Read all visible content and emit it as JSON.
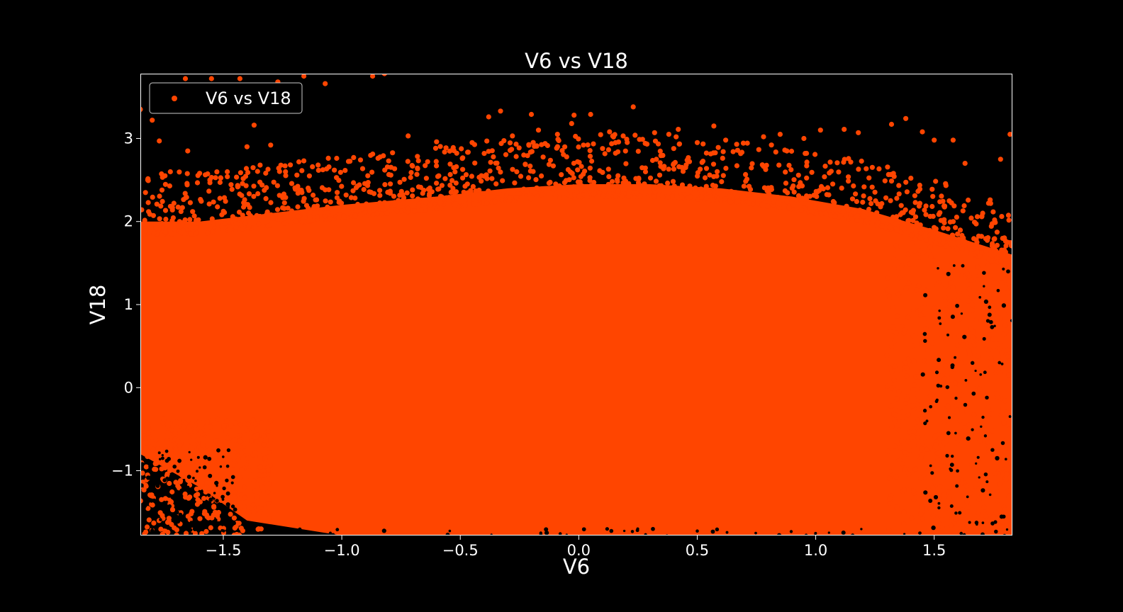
{
  "colors": {
    "background": "#000000",
    "points": "#ff4500",
    "axes": "#ffffff",
    "text": "#ffffff"
  },
  "chart_data": {
    "type": "scatter",
    "title": "V6 vs V18",
    "xlabel": "V6",
    "ylabel": "V18",
    "xlim": [
      -1.85,
      1.83
    ],
    "ylim": [
      -1.78,
      3.78
    ],
    "xticks": [
      {
        "value": -1.5,
        "label": "−1.5"
      },
      {
        "value": -1.0,
        "label": "−1.0"
      },
      {
        "value": -0.5,
        "label": "−0.5"
      },
      {
        "value": 0.0,
        "label": "0.0"
      },
      {
        "value": 0.5,
        "label": "0.5"
      },
      {
        "value": 1.0,
        "label": "1.0"
      },
      {
        "value": 1.5,
        "label": "1.5"
      }
    ],
    "yticks": [
      {
        "value": -1,
        "label": "−1"
      },
      {
        "value": 0,
        "label": "0"
      },
      {
        "value": 1,
        "label": "1"
      },
      {
        "value": 2,
        "label": "2"
      },
      {
        "value": 3,
        "label": "3"
      }
    ],
    "grid": false,
    "legend": {
      "position": "top-left"
    },
    "series": [
      {
        "name": "V6 vs V18",
        "color": "#ff4500",
        "density_body": [
          [
            -1.85,
            -1.7
          ],
          [
            -1.85,
            2.0
          ],
          [
            -1.6,
            2.0
          ],
          [
            -1.3,
            2.1
          ],
          [
            -1.0,
            2.2
          ],
          [
            -0.6,
            2.3
          ],
          [
            -0.3,
            2.4
          ],
          [
            0.0,
            2.45
          ],
          [
            0.3,
            2.45
          ],
          [
            0.6,
            2.4
          ],
          [
            0.9,
            2.3
          ],
          [
            1.2,
            2.15
          ],
          [
            1.5,
            1.9
          ],
          [
            1.83,
            1.6
          ],
          [
            1.83,
            -1.78
          ],
          [
            1.5,
            -1.78
          ],
          [
            1.0,
            -1.78
          ],
          [
            0.5,
            -1.78
          ],
          [
            0.0,
            -1.78
          ],
          [
            -0.5,
            -1.78
          ],
          [
            -1.0,
            -1.78
          ],
          [
            -1.4,
            -1.6
          ],
          [
            -1.6,
            -1.2
          ],
          [
            -1.85,
            -0.8
          ]
        ],
        "visible_outliers": [
          [
            -1.8,
            3.22
          ],
          [
            -1.77,
            2.97
          ],
          [
            -1.65,
            2.85
          ],
          [
            -1.6,
            2.58
          ],
          [
            -1.4,
            2.9
          ],
          [
            -1.37,
            3.16
          ],
          [
            -1.3,
            2.92
          ],
          [
            -1.16,
            2.73
          ],
          [
            -1.1,
            2.68
          ],
          [
            -0.95,
            2.77
          ],
          [
            -0.72,
            3.03
          ],
          [
            -0.6,
            2.96
          ],
          [
            -0.45,
            2.95
          ],
          [
            -0.38,
            3.26
          ],
          [
            -0.33,
            3.33
          ],
          [
            -0.28,
            3.03
          ],
          [
            -0.2,
            3.29
          ],
          [
            -0.17,
            3.1
          ],
          [
            -0.09,
            3.05
          ],
          [
            -0.03,
            3.18
          ],
          [
            -0.02,
            3.28
          ],
          [
            0.02,
            2.92
          ],
          [
            0.05,
            3.29
          ],
          [
            0.13,
            3.08
          ],
          [
            0.23,
            3.38
          ],
          [
            0.32,
            3.07
          ],
          [
            0.38,
            3.05
          ],
          [
            0.42,
            3.11
          ],
          [
            0.5,
            2.95
          ],
          [
            0.57,
            3.15
          ],
          [
            0.62,
            2.98
          ],
          [
            0.78,
            3.02
          ],
          [
            0.85,
            3.05
          ],
          [
            0.95,
            3.0
          ],
          [
            1.02,
            3.1
          ],
          [
            1.12,
            3.11
          ],
          [
            1.18,
            3.07
          ],
          [
            1.32,
            3.17
          ],
          [
            1.38,
            3.24
          ],
          [
            1.45,
            3.08
          ],
          [
            1.5,
            2.98
          ],
          [
            1.58,
            2.98
          ],
          [
            1.63,
            2.7
          ],
          [
            1.78,
            2.75
          ],
          [
            1.82,
            3.05
          ],
          [
            -1.43,
            3.72
          ],
          [
            -1.27,
            3.68
          ],
          [
            -1.16,
            3.75
          ],
          [
            -1.07,
            3.66
          ],
          [
            -0.87,
            3.75
          ],
          [
            -0.82,
            3.78
          ],
          [
            -1.66,
            3.72
          ],
          [
            -1.55,
            3.72
          ],
          [
            -1.53,
            3.38
          ],
          [
            -1.85,
            3.35
          ]
        ]
      }
    ]
  }
}
